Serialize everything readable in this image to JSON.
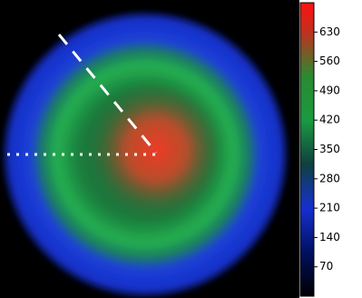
{
  "chart_data": {
    "type": "heatmap",
    "clim": [
      0,
      700
    ],
    "cbar_ticks": [
      70,
      140,
      210,
      280,
      350,
      420,
      490,
      560,
      630
    ]
  }
}
